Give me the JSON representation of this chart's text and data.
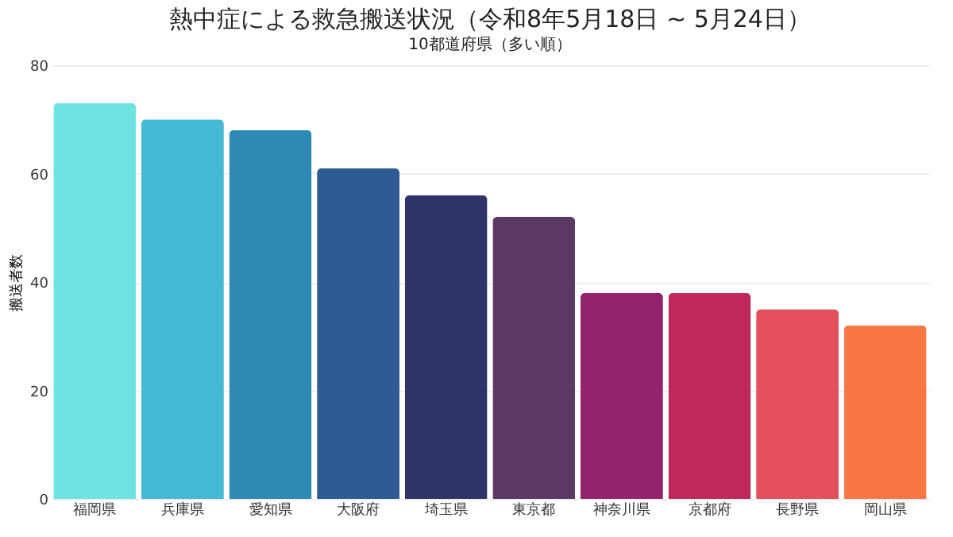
{
  "chart_data": {
    "type": "bar",
    "title": "熱中症による救急搬送状況（令和8年5月18日 ~ 5月24日）",
    "subtitle": "10都道府県（多い順）",
    "ylabel": "搬送者数",
    "categories": [
      "福岡県",
      "兵庫県",
      "愛知県",
      "大阪府",
      "埼玉県",
      "東京都",
      "神奈川県",
      "京都府",
      "長野県",
      "岡山県"
    ],
    "values": [
      73,
      70,
      68,
      61,
      56,
      52,
      38,
      38,
      35,
      32
    ],
    "colors": [
      "#6de3e3",
      "#45b8d4",
      "#2c8ab5",
      "#2d5b92",
      "#2e3467",
      "#5c3864",
      "#92236c",
      "#bf285c",
      "#e34f5a",
      "#f97645"
    ],
    "ylim": [
      0,
      80
    ],
    "yticks": [
      0,
      20,
      40,
      60,
      80
    ],
    "grid": "y"
  }
}
